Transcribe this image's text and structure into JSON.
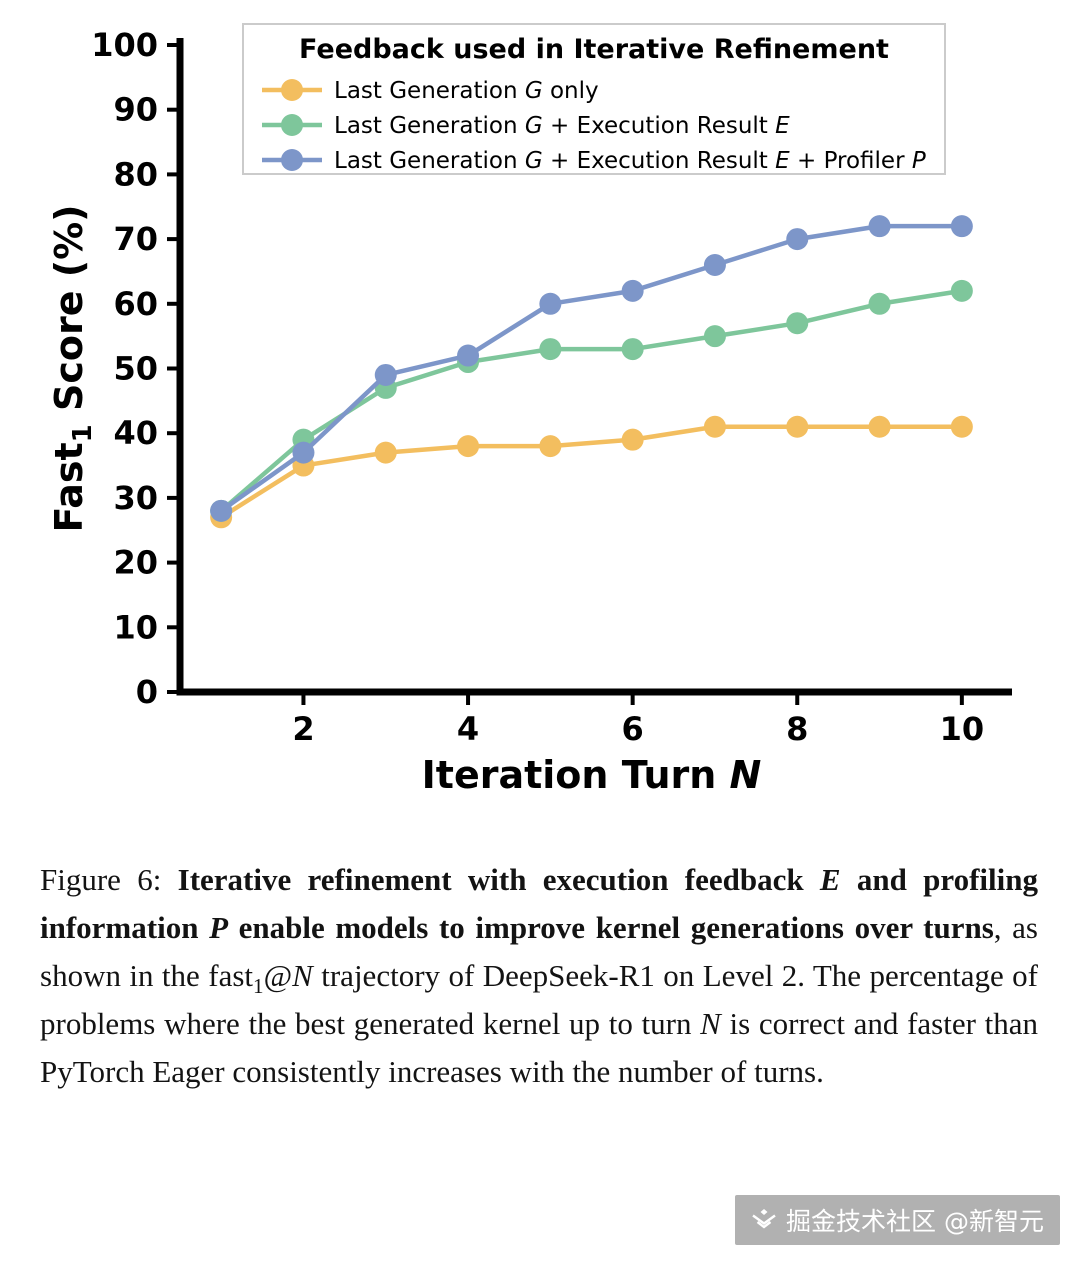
{
  "chart_data": {
    "type": "line",
    "title": "",
    "xlabel": "Iteration Turn N",
    "xlabel_parts": [
      {
        "t": "Iteration Turn "
      },
      {
        "t": "N",
        "italic": true
      }
    ],
    "ylabel": "Fast_1 Score (%)",
    "ylabel_parts": [
      {
        "t": "Fast"
      },
      {
        "t": "1",
        "sub": true
      },
      {
        "t": " Score (%)"
      }
    ],
    "xlim": [
      0.5,
      10.5
    ],
    "ylim": [
      0,
      100
    ],
    "xticks": [
      2,
      4,
      6,
      8,
      10
    ],
    "yticks": [
      0,
      10,
      20,
      30,
      40,
      50,
      60,
      70,
      80,
      90,
      100
    ],
    "grid": false,
    "legend": {
      "title": "Feedback used in Iterative Refinement",
      "position": "upper-left-inside"
    },
    "x": [
      1,
      2,
      3,
      4,
      5,
      6,
      7,
      8,
      9,
      10
    ],
    "series": [
      {
        "name": "Last Generation G only",
        "label_parts": [
          {
            "t": "Last Generation "
          },
          {
            "t": "G",
            "italic": true
          },
          {
            "t": " only"
          }
        ],
        "color": "#F3BE5F",
        "values": [
          27,
          35,
          37,
          38,
          38,
          39,
          41,
          41,
          41,
          41
        ]
      },
      {
        "name": "Last Generation G + Execution Result E",
        "label_parts": [
          {
            "t": "Last Generation "
          },
          {
            "t": "G",
            "italic": true
          },
          {
            "t": " + Execution Result "
          },
          {
            "t": "E",
            "italic": true
          }
        ],
        "color": "#7EC69B",
        "values": [
          28,
          39,
          47,
          51,
          53,
          53,
          55,
          57,
          60,
          62
        ]
      },
      {
        "name": "Last Generation G + Execution Result E + Profiler P",
        "label_parts": [
          {
            "t": "Last Generation "
          },
          {
            "t": "G",
            "italic": true
          },
          {
            "t": " + Execution Result "
          },
          {
            "t": "E",
            "italic": true
          },
          {
            "t": " + Profiler "
          },
          {
            "t": "P",
            "italic": true
          }
        ],
        "color": "#7D96C9",
        "values": [
          28,
          37,
          49,
          52,
          60,
          62,
          66,
          70,
          72,
          72
        ]
      }
    ]
  },
  "caption": {
    "segments": [
      {
        "text": "Figure 6: ",
        "style": "r"
      },
      {
        "text": "Iterative refinement with execution feedback ",
        "style": "b"
      },
      {
        "text": "E",
        "style": "bi"
      },
      {
        "text": " and profiling information ",
        "style": "b"
      },
      {
        "text": "P",
        "style": "bi"
      },
      {
        "text": " enable models to improve kernel generations over turns",
        "style": "b"
      },
      {
        "text": ", as shown in the fast",
        "style": "r"
      },
      {
        "text": "1",
        "style": "sub"
      },
      {
        "text": "@",
        "style": "r"
      },
      {
        "text": "N",
        "style": "i"
      },
      {
        "text": " trajectory of DeepSeek-R1 on Level 2. The percentage of problems where the best generated kernel up to turn ",
        "style": "r"
      },
      {
        "text": "N",
        "style": "i"
      },
      {
        "text": " is correct and faster than PyTorch Eager consistently increases with the number of turns.",
        "style": "r"
      }
    ]
  },
  "watermark": {
    "text": "掘金技术社区 @新智元"
  }
}
